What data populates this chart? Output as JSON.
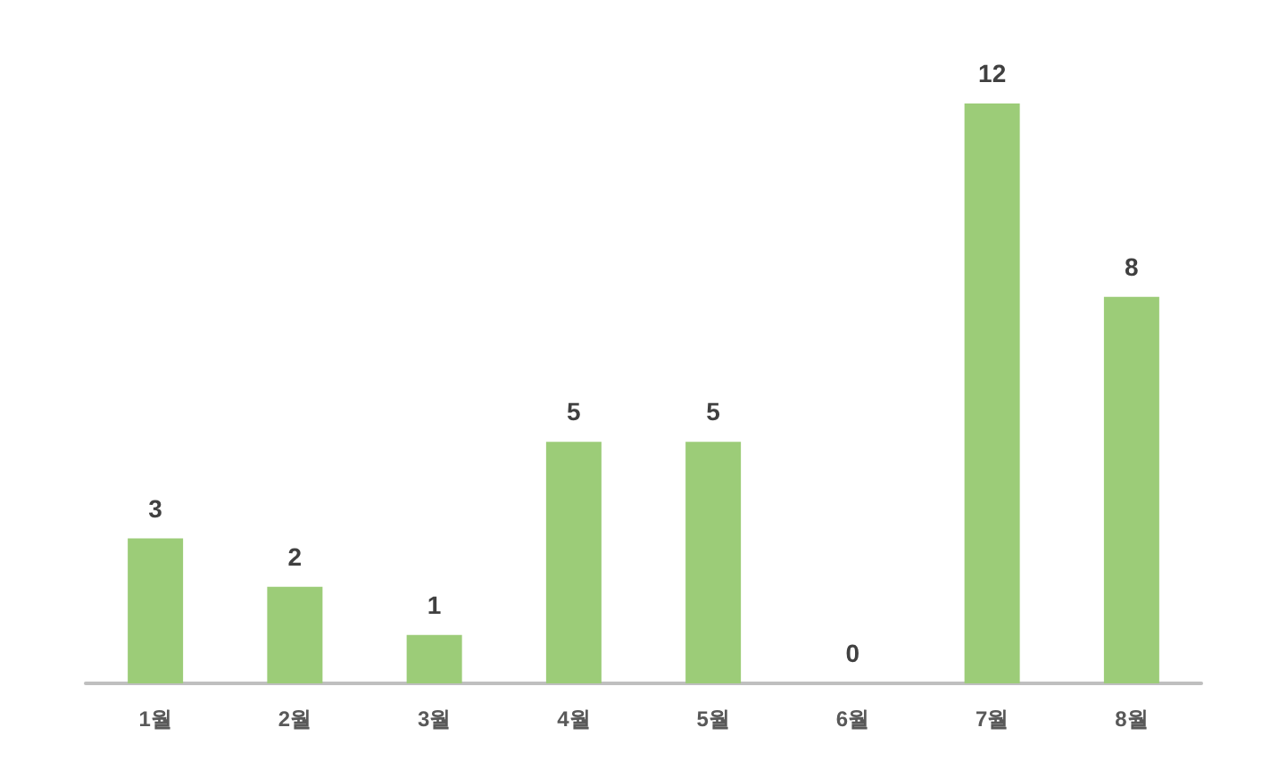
{
  "chart_data": {
    "type": "bar",
    "categories": [
      "1월",
      "2월",
      "3월",
      "4월",
      "5월",
      "6월",
      "7월",
      "8월"
    ],
    "values": [
      3,
      2,
      1,
      5,
      5,
      0,
      12,
      8
    ],
    "color": "#9ccc78",
    "data_labels": true
  }
}
